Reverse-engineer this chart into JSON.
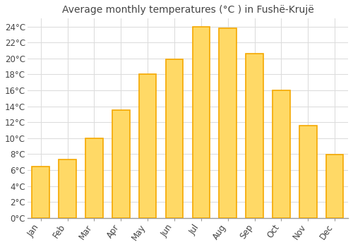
{
  "title": "Average monthly temperatures (°C ) in Fushë-Krujë",
  "months": [
    "Jan",
    "Feb",
    "Mar",
    "Apr",
    "May",
    "Jun",
    "Jul",
    "Aug",
    "Sep",
    "Oct",
    "Nov",
    "Dec"
  ],
  "values": [
    6.4,
    7.3,
    10.0,
    13.5,
    18.0,
    19.9,
    24.0,
    23.8,
    20.6,
    16.0,
    11.6,
    7.9
  ],
  "bar_color_center": "#FFD966",
  "bar_color_edge": "#F5A800",
  "background_color": "#FFFFFF",
  "plot_bg_color": "#FFFFFF",
  "grid_color": "#DDDDDD",
  "text_color": "#444444",
  "ylim": [
    0,
    25
  ],
  "ytick_max": 24,
  "ytick_step": 2,
  "title_fontsize": 10,
  "tick_fontsize": 8.5,
  "bar_width": 0.65
}
